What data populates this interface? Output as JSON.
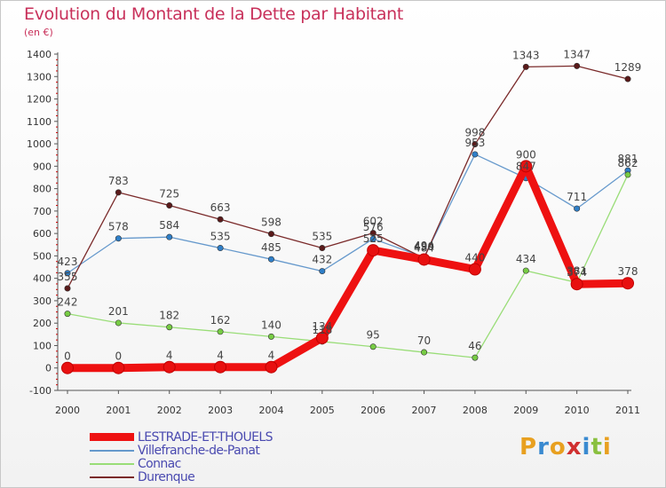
{
  "header": {
    "title": "Evolution du Montant de la Dette par Habitant",
    "unit": "(en €)"
  },
  "brand": {
    "text": "Proxiti",
    "letters": [
      "P",
      "r",
      "o",
      "x",
      "i",
      "t",
      "i"
    ],
    "colors": [
      "#e8a020",
      "#3a8ad0",
      "#e8a020",
      "#d03030",
      "#3a8ad0",
      "#8ac040",
      "#e8a020"
    ]
  },
  "chart_data": {
    "type": "line",
    "categories": [
      "2000",
      "2001",
      "2002",
      "2003",
      "2004",
      "2005",
      "2006",
      "2007",
      "2008",
      "2009",
      "2010",
      "2011"
    ],
    "ylim": [
      -100,
      1400
    ],
    "ytick_step": 100,
    "grid": false,
    "legend_position": "bottom-left",
    "series": [
      {
        "name": "LESTRADE-ET-THOUELS",
        "color": "#ee1111",
        "marker_color": "#e81010",
        "values": [
          0,
          0,
          4,
          4,
          4,
          134,
          525,
          484,
          440,
          900,
          374,
          378
        ],
        "labels": [
          "0",
          "0",
          "4",
          "4",
          "4",
          "134",
          "525",
          "484",
          "440",
          "900",
          "374",
          "378"
        ]
      },
      {
        "name": "Villefranche-de-Panat",
        "color": "#6699cc",
        "marker_color": "#2f7fc8",
        "values": [
          423,
          578,
          584,
          535,
          485,
          432,
          576,
          494,
          953,
          847,
          711,
          881
        ],
        "labels": [
          "423",
          "578",
          "584",
          "535",
          "485",
          "432",
          "576",
          "494",
          "953",
          "847",
          "711",
          "881"
        ]
      },
      {
        "name": "Connac",
        "color": "#99dd77",
        "marker_color": "#77cc44",
        "values": [
          242,
          201,
          182,
          162,
          140,
          118,
          95,
          70,
          46,
          434,
          381,
          862
        ],
        "labels": [
          "242",
          "201",
          "182",
          "162",
          "140",
          "118",
          "95",
          "70",
          "46",
          "434",
          "381",
          "862"
        ]
      },
      {
        "name": "Durenque",
        "color": "#7a2a2a",
        "marker_color": "#5a1a1a",
        "values": [
          355,
          783,
          725,
          663,
          598,
          535,
          602,
          490,
          998,
          1343,
          1347,
          1289
        ],
        "labels": [
          "355",
          "783",
          "725",
          "663",
          "598",
          "535",
          "602",
          "490",
          "998",
          "1343",
          "1347",
          "1289"
        ]
      }
    ]
  }
}
